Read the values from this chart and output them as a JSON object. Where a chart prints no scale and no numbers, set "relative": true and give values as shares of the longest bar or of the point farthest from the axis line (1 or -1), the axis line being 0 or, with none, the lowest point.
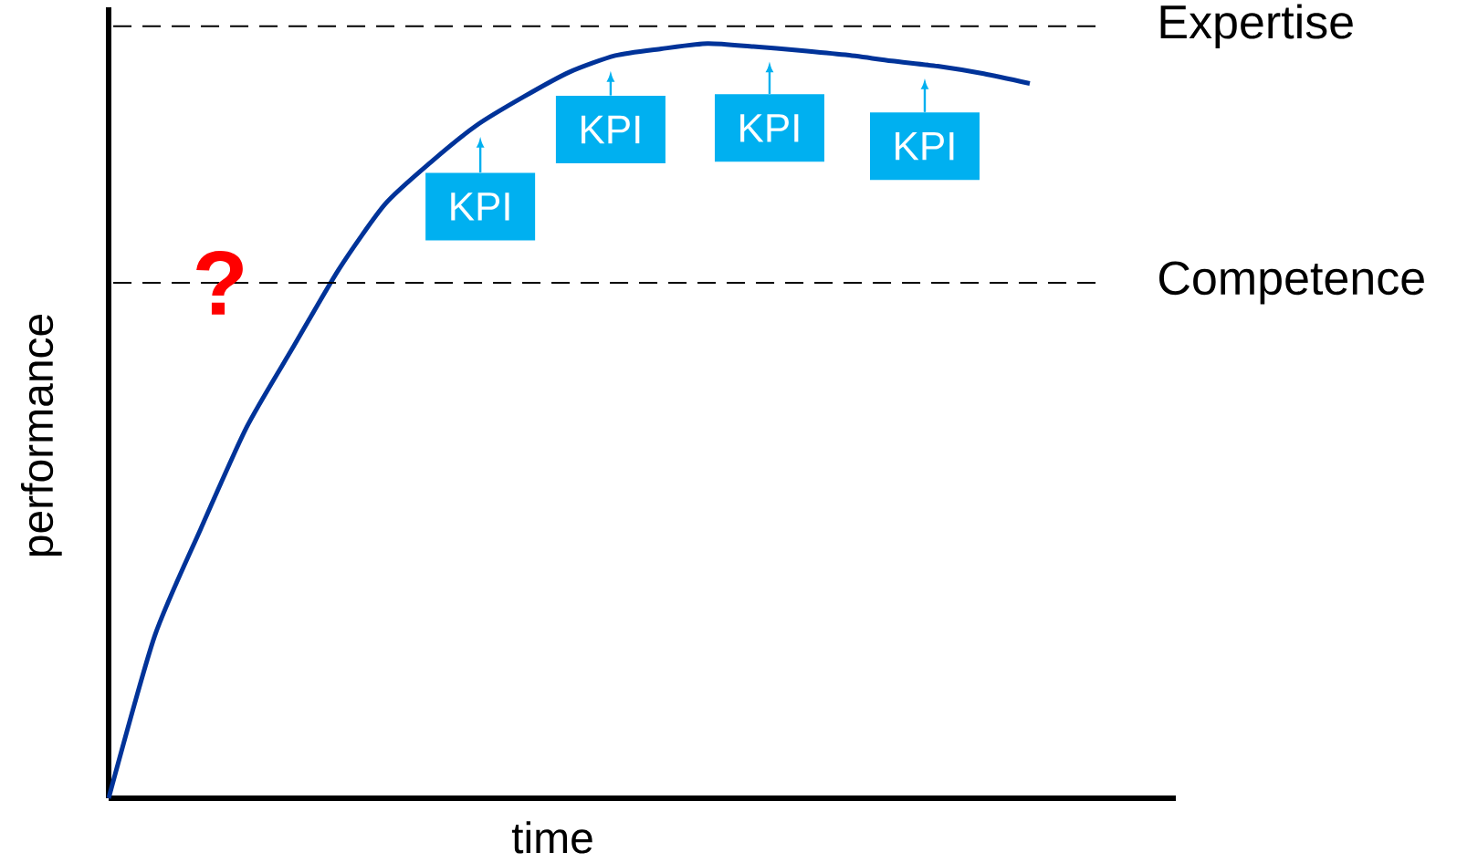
{
  "chart_data": {
    "type": "line",
    "relative": true,
    "xlabel": "time",
    "ylabel": "performance",
    "categories": [
      null,
      null,
      null,
      null,
      null,
      null,
      null,
      null,
      null,
      null,
      null,
      null,
      null,
      null,
      null,
      null,
      null,
      null,
      null,
      null,
      null
    ],
    "series": [
      {
        "color": "#003399",
        "values": [
          0,
          0.215,
          0.357,
          0.492,
          0.597,
          0.701,
          0.787,
          0.843,
          0.892,
          0.929,
          0.962,
          0.984,
          0.993,
          1.0,
          0.996,
          0.991,
          0.985,
          0.977,
          0.97,
          0.96,
          0.947
        ]
      }
    ],
    "ref_lines": [
      {
        "axis": "y",
        "value": 1.023,
        "label": "Expertise",
        "color": "#000000",
        "line_style": "dashed"
      },
      {
        "axis": "y",
        "value": 0.683,
        "label": "Competence",
        "color": "#000000",
        "line_style": "dashed"
      }
    ],
    "annotations": [
      "KPI",
      "KPI",
      "KPI",
      "KPI",
      "?"
    ],
    "marker": "none",
    "line_style": "solid"
  }
}
